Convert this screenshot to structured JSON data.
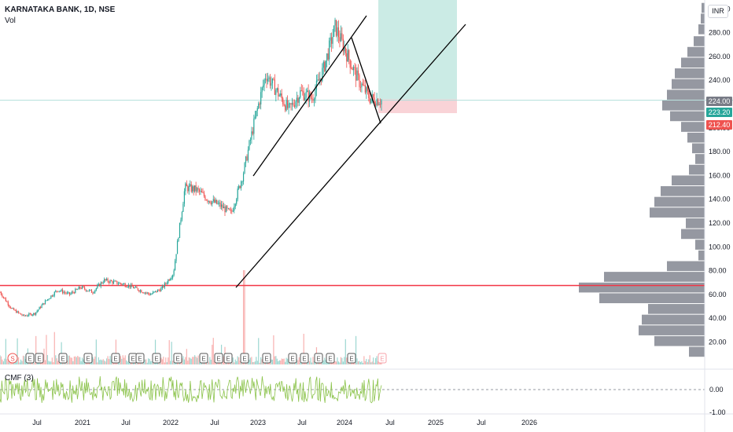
{
  "header": {
    "symbol_title": "KARNATAKA BANK, 1D, NSE",
    "volume_label": "Vol",
    "cmf_label": "CMF (3)",
    "currency_button": "INR"
  },
  "price_axis": {
    "ticks": [
      "300.00",
      "280.00",
      "260.00",
      "240.00",
      "224.00",
      "223.20",
      "212.40",
      "200.00",
      "180.00",
      "160.00",
      "140.00",
      "120.00",
      "100.00",
      "80.00",
      "60.00",
      "40.00",
      "20.00"
    ],
    "ticks_values": [
      300,
      280,
      260,
      240,
      200,
      180,
      160,
      140,
      120,
      100,
      80,
      60,
      40,
      20
    ]
  },
  "price_labels": {
    "target_label": "224.00",
    "last_price_label": "223.20",
    "stop_label": "212.40"
  },
  "cmf_axis": {
    "zero_label": "0.00",
    "low_label": "-1.00"
  },
  "time_axis": {
    "labels": [
      "Jul",
      "2021",
      "Jul",
      "2022",
      "Jul",
      "2023",
      "Jul",
      "2024",
      "Jul",
      "2025",
      "Jul",
      "2026"
    ]
  },
  "event_markers": {
    "items": [
      "S",
      "E",
      "E",
      "E",
      "E",
      "E",
      "E",
      "E",
      "E",
      "E",
      "E",
      "E",
      "E",
      "E",
      "E",
      "E",
      "E",
      "E"
    ]
  },
  "colors": {
    "up": "#26a69a",
    "down": "#ef5350",
    "support_line": "#f23645",
    "target_zone": "#cbebe5",
    "stop_zone": "#f9d3d7",
    "volume_profile": "#9598a1",
    "cmf_line": "#8bc34a"
  },
  "chart_data": {
    "type": "candlestick",
    "title": "KARNATAKA BANK, 1D, NSE",
    "x": [
      "2020-05",
      "2020-07",
      "2020-09",
      "2020-11",
      "2021-01",
      "2021-03",
      "2021-05",
      "2021-07",
      "2021-09",
      "2021-11",
      "2022-01",
      "2022-03",
      "2022-05",
      "2022-07",
      "2022-09",
      "2022-11",
      "2022-12",
      "2023-01",
      "2023-02",
      "2023-03",
      "2023-04",
      "2023-05",
      "2023-06",
      "2023-07",
      "2023-08",
      "2023-09",
      "2023-10",
      "2023-11",
      "2023-12",
      "2024-01",
      "2024-02",
      "2024-03",
      "2024-04",
      "2024-05"
    ],
    "close": [
      62,
      48,
      42,
      44,
      55,
      64,
      60,
      66,
      62,
      72,
      70,
      68,
      64,
      60,
      65,
      78,
      150,
      148,
      140,
      135,
      128,
      160,
      205,
      245,
      230,
      215,
      230,
      225,
      250,
      285,
      262,
      240,
      225,
      223
    ],
    "horizontal_support": 67.5,
    "last_price": 223.2,
    "ylim": [
      15,
      310
    ],
    "cmf_zero": 0.0
  }
}
